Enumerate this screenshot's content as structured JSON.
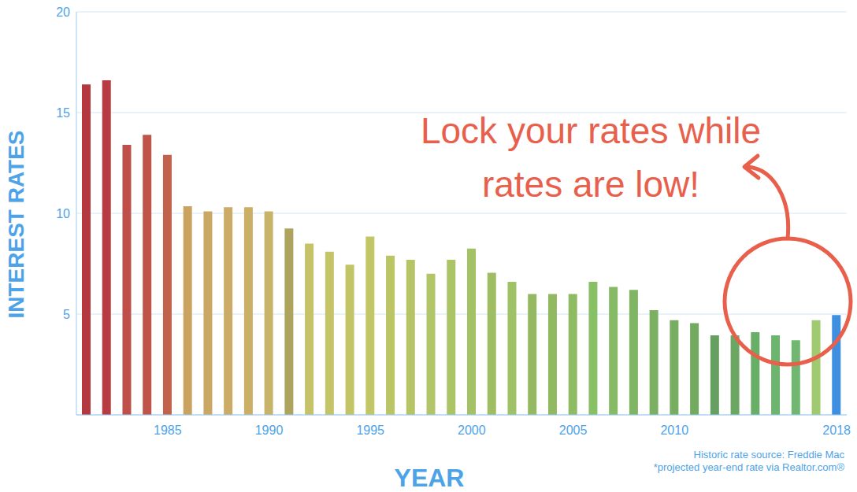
{
  "chart_data": {
    "type": "bar",
    "x_label": "YEAR",
    "y_label": "INTEREST RATES",
    "annotation": [
      "Lock your rates while",
      "rates are low!"
    ],
    "notes": [
      "Historic rate source: Freddie Mac",
      "*projected year-end rate via Realtor.com®"
    ],
    "categories": [
      null,
      null,
      null,
      null,
      "1985",
      null,
      null,
      null,
      null,
      "1990",
      null,
      null,
      null,
      null,
      "1995",
      null,
      null,
      null,
      null,
      "2000",
      null,
      null,
      null,
      null,
      "2005",
      null,
      null,
      null,
      null,
      "2010",
      null,
      null,
      null,
      null,
      null,
      null,
      null,
      "2018"
    ],
    "values": [
      16.4,
      16.6,
      13.4,
      13.9,
      12.9,
      10.35,
      10.1,
      10.3,
      10.3,
      10.1,
      9.25,
      8.5,
      8.1,
      7.45,
      8.85,
      7.9,
      7.7,
      7.0,
      7.7,
      8.25,
      7.05,
      6.6,
      6.0,
      6.0,
      6.0,
      6.6,
      6.35,
      6.2,
      5.2,
      4.7,
      4.55,
      3.95,
      3.95,
      4.1,
      3.95,
      3.7,
      4.7,
      4.95
    ],
    "colors": [
      "#b5383f",
      "#b83a42",
      "#bf5049",
      "#bf5448",
      "#c3624a",
      "#c9a35f",
      "#caa864",
      "#cbab66",
      "#cbaf67",
      "#c8b468",
      "#aea45e",
      "#c6c268",
      "#c6c468",
      "#c3c466",
      "#c2c666",
      "#bcc566",
      "#b6c466",
      "#b2c569",
      "#aac466",
      "#a4c165",
      "#9fbd63",
      "#9ec265",
      "#95b862",
      "#90b962",
      "#8fbb63",
      "#88c066",
      "#86ba66",
      "#80b564",
      "#7bb062",
      "#76ad61",
      "#72ab60",
      "#66a060",
      "#6ba763",
      "#68ae66",
      "#6db56e",
      "#72b771",
      "#9fca70",
      "#3e8fe0"
    ],
    "ylim": [
      0,
      20
    ],
    "yticks": [
      5,
      10,
      15,
      20
    ],
    "grid": true
  }
}
